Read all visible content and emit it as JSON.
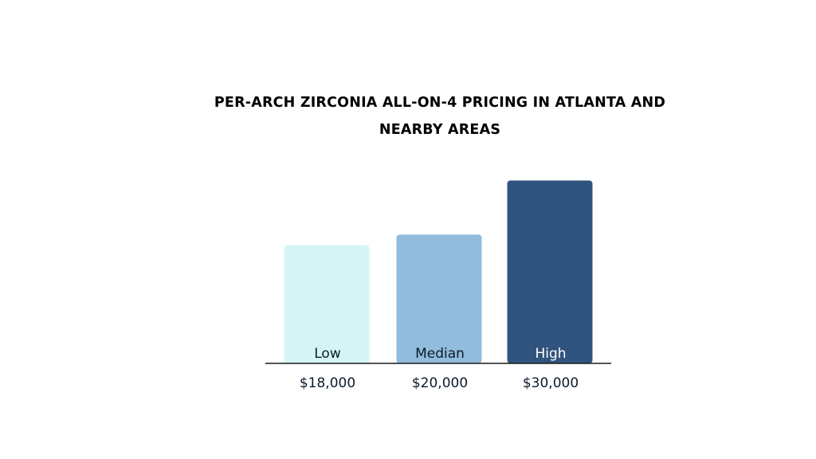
{
  "chart_data": {
    "type": "bar",
    "title": "PER-ARCH ZIRCONIA ALL-ON-4 PRICING IN ATLANTA AND NEARBY AREAS",
    "xlabel": "",
    "ylabel": "",
    "categories": [
      "Low",
      "Median",
      "High"
    ],
    "values": [
      18000,
      20000,
      30000
    ],
    "value_labels": [
      "$18,000",
      "$20,000",
      "$30,000"
    ],
    "colors": [
      "#d5f5f5",
      "#91bcdb",
      "#31547e"
    ],
    "category_label_colors": [
      "#0d1a2b",
      "#0d1a2b",
      "#ffffff"
    ],
    "grid": false,
    "legend": "none"
  }
}
